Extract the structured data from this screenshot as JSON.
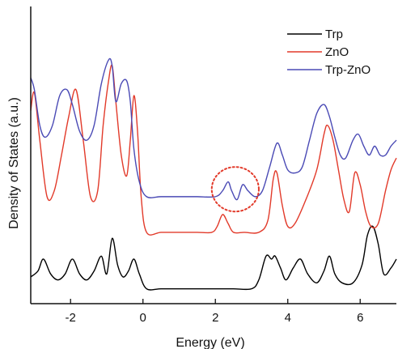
{
  "chart_data": {
    "type": "line",
    "title": "",
    "xlabel": "Energy (eV)",
    "ylabel": "Density of States (a.u.)",
    "xlim": [
      -3.1,
      7.0
    ],
    "ylim": [
      0,
      1
    ],
    "xticks": [
      -2,
      0,
      2,
      4,
      6
    ],
    "xtick_labels": [
      "-2",
      "0",
      "2",
      "4",
      "6"
    ],
    "grid": false,
    "legend_position": "top-right",
    "series": [
      {
        "name": "Trp",
        "color": "#000000",
        "x": [
          -3.1,
          -2.9,
          -2.75,
          -2.55,
          -2.35,
          -2.15,
          -1.95,
          -1.75,
          -1.55,
          -1.35,
          -1.15,
          -1.0,
          -0.85,
          -0.7,
          -0.55,
          -0.4,
          -0.25,
          -0.1,
          0.1,
          0.5,
          1.0,
          1.5,
          2.0,
          2.5,
          3.0,
          3.2,
          3.4,
          3.55,
          3.65,
          3.8,
          3.95,
          4.15,
          4.35,
          4.55,
          4.8,
          5.0,
          5.15,
          5.3,
          5.5,
          5.8,
          6.05,
          6.2,
          6.35,
          6.5,
          6.65,
          6.85,
          7.0
        ],
        "y": [
          0.09,
          0.11,
          0.15,
          0.1,
          0.08,
          0.1,
          0.15,
          0.1,
          0.08,
          0.11,
          0.16,
          0.1,
          0.22,
          0.13,
          0.09,
          0.11,
          0.15,
          0.1,
          0.05,
          0.05,
          0.05,
          0.05,
          0.05,
          0.05,
          0.05,
          0.08,
          0.16,
          0.15,
          0.16,
          0.12,
          0.08,
          0.12,
          0.15,
          0.1,
          0.07,
          0.11,
          0.16,
          0.1,
          0.07,
          0.07,
          0.13,
          0.23,
          0.26,
          0.2,
          0.1,
          0.12,
          0.15
        ]
      },
      {
        "name": "ZnO",
        "color": "#e23a2a",
        "x": [
          -3.1,
          -3.0,
          -2.85,
          -2.65,
          -2.45,
          -2.25,
          -2.05,
          -1.85,
          -1.65,
          -1.45,
          -1.25,
          -1.1,
          -0.95,
          -0.85,
          -0.75,
          -0.6,
          -0.45,
          -0.35,
          -0.25,
          -0.15,
          -0.05,
          0.1,
          0.5,
          1.0,
          1.5,
          1.9,
          2.05,
          2.2,
          2.35,
          2.5,
          2.8,
          3.2,
          3.45,
          3.6,
          3.7,
          3.85,
          4.0,
          4.2,
          4.5,
          4.8,
          5.0,
          5.1,
          5.25,
          5.4,
          5.55,
          5.7,
          5.85,
          6.0,
          6.15,
          6.3,
          6.5,
          6.7,
          6.85,
          7.0
        ],
        "y": [
          0.65,
          0.71,
          0.55,
          0.36,
          0.38,
          0.5,
          0.63,
          0.72,
          0.55,
          0.36,
          0.38,
          0.6,
          0.75,
          0.8,
          0.68,
          0.5,
          0.43,
          0.55,
          0.7,
          0.58,
          0.36,
          0.24,
          0.24,
          0.24,
          0.24,
          0.24,
          0.26,
          0.3,
          0.27,
          0.24,
          0.24,
          0.24,
          0.28,
          0.42,
          0.44,
          0.33,
          0.26,
          0.27,
          0.35,
          0.45,
          0.57,
          0.6,
          0.55,
          0.45,
          0.35,
          0.31,
          0.44,
          0.4,
          0.31,
          0.26,
          0.27,
          0.38,
          0.45,
          0.49
        ]
      },
      {
        "name": "Trp-ZnO",
        "color": "#4a4ab5",
        "x": [
          -3.1,
          -3.0,
          -2.85,
          -2.7,
          -2.5,
          -2.3,
          -2.1,
          -1.95,
          -1.75,
          -1.55,
          -1.35,
          -1.15,
          -0.95,
          -0.85,
          -0.75,
          -0.6,
          -0.45,
          -0.35,
          -0.25,
          -0.1,
          0.1,
          0.5,
          1.0,
          1.5,
          2.0,
          2.2,
          2.35,
          2.45,
          2.6,
          2.75,
          2.9,
          3.1,
          3.3,
          3.5,
          3.7,
          3.85,
          4.0,
          4.2,
          4.4,
          4.6,
          4.8,
          5.0,
          5.15,
          5.3,
          5.45,
          5.6,
          5.8,
          5.95,
          6.1,
          6.25,
          6.4,
          6.55,
          6.7,
          6.85,
          7.0
        ],
        "y": [
          0.76,
          0.72,
          0.6,
          0.56,
          0.6,
          0.7,
          0.72,
          0.67,
          0.58,
          0.55,
          0.6,
          0.74,
          0.82,
          0.8,
          0.68,
          0.74,
          0.75,
          0.68,
          0.52,
          0.41,
          0.36,
          0.36,
          0.36,
          0.36,
          0.36,
          0.38,
          0.41,
          0.38,
          0.35,
          0.4,
          0.38,
          0.36,
          0.38,
          0.46,
          0.54,
          0.5,
          0.45,
          0.44,
          0.46,
          0.55,
          0.64,
          0.67,
          0.63,
          0.56,
          0.5,
          0.49,
          0.55,
          0.57,
          0.53,
          0.5,
          0.53,
          0.5,
          0.5,
          0.53,
          0.55
        ]
      }
    ],
    "annotations": [
      {
        "type": "dotted-ellipse",
        "color": "#e23a2a",
        "x_range": [
          1.9,
          3.2
        ],
        "y_range": [
          0.31,
          0.46
        ]
      }
    ]
  }
}
